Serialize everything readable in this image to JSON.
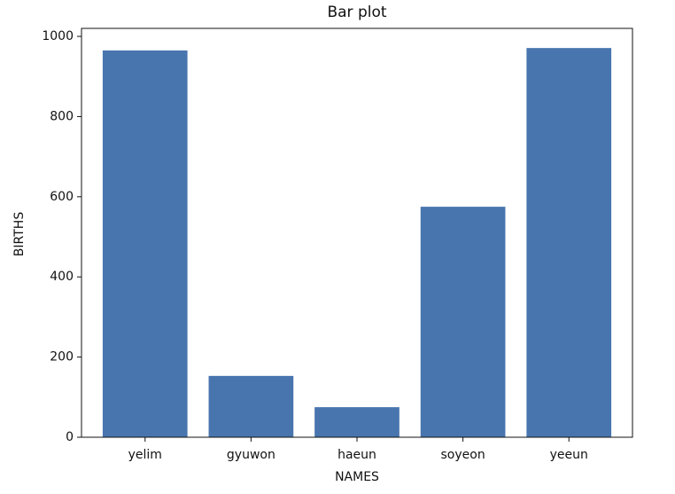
{
  "chart_data": {
    "type": "bar",
    "title": "Bar plot",
    "x_label": "NAMES",
    "y_label": "BIRTHS",
    "categories": [
      "yelim",
      "gyuwon",
      "haeun",
      "soyeon",
      "yeeun"
    ],
    "values": [
      965,
      153,
      75,
      575,
      971
    ],
    "color": "#4875ae",
    "ylim": [
      0,
      1020
    ],
    "yticks": [
      0,
      200,
      400,
      600,
      800,
      1000
    ],
    "grid": false
  }
}
